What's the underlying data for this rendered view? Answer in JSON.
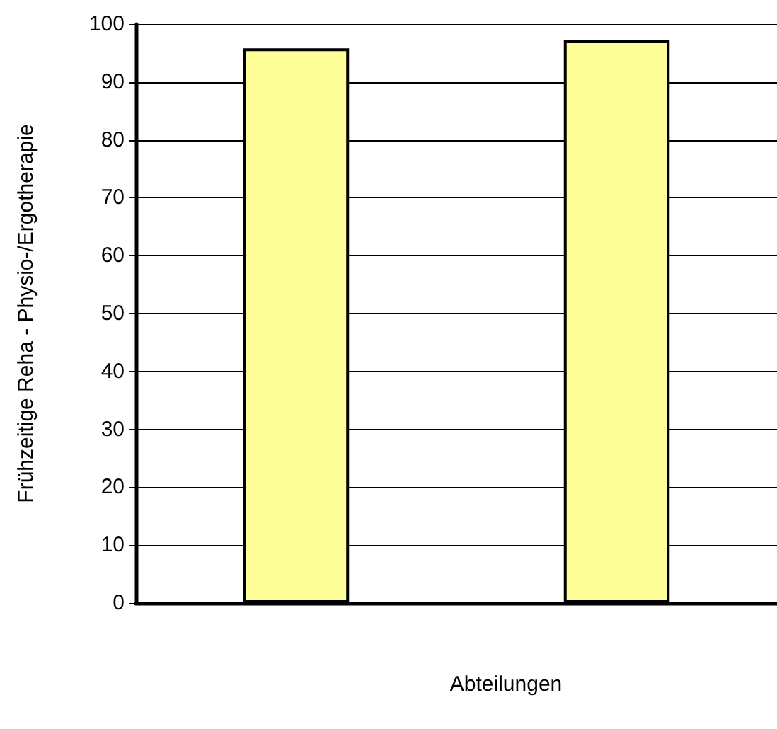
{
  "chart_data": {
    "type": "bar",
    "xlabel": "Abteilungen",
    "ylabel": "Frühzeitige Reha - Physio-/Ergotherapie",
    "categories": [
      null,
      null
    ],
    "values": [
      95.8,
      97.2
    ],
    "color": "#ffff99",
    "ylim": [
      0,
      100
    ],
    "yticks": [
      0,
      10,
      20,
      30,
      40,
      50,
      60,
      70,
      80,
      90,
      100
    ],
    "grid": "y"
  }
}
